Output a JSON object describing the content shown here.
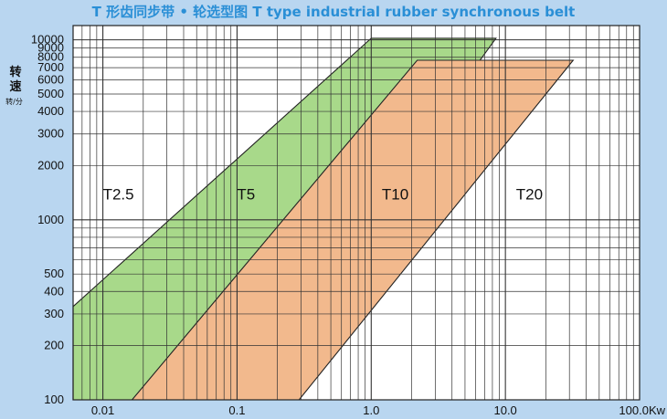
{
  "chart_data": {
    "type": "area",
    "title": "T 形齿同步带 • 轮选型图  T type industrial rubber synchronous belt",
    "ylabel": "转速",
    "ylabel_unit": "转/分",
    "xlabel": "",
    "x_scale": "log",
    "y_scale": "log",
    "xlim": [
      0.006,
      100
    ],
    "ylim": [
      100,
      12000
    ],
    "x_ticks": [
      {
        "value": 0.01,
        "label": "0.01"
      },
      {
        "value": 0.1,
        "label": "0.1"
      },
      {
        "value": 1,
        "label": "1.0"
      },
      {
        "value": 10,
        "label": "10.0"
      },
      {
        "value": 100,
        "label": "100.0Kw"
      }
    ],
    "y_ticks": [
      {
        "value": 100,
        "label": "100"
      },
      {
        "value": 200,
        "label": "200"
      },
      {
        "value": 300,
        "label": "300"
      },
      {
        "value": 400,
        "label": "400"
      },
      {
        "value": 500,
        "label": "500"
      },
      {
        "value": 1000,
        "label": "1000"
      },
      {
        "value": 2000,
        "label": "2000"
      },
      {
        "value": 3000,
        "label": "3000"
      },
      {
        "value": 4000,
        "label": "4000"
      },
      {
        "value": 5000,
        "label": "5000"
      },
      {
        "value": 6000,
        "label": "6000"
      },
      {
        "value": 7000,
        "label": "7000"
      },
      {
        "value": 8000,
        "label": "8000"
      },
      {
        "value": 9000,
        "label": "9000"
      },
      {
        "value": 10000,
        "label": "10000"
      }
    ],
    "grid": true,
    "regions": [
      {
        "name": "T5",
        "color": "#a8d98a",
        "polygon": [
          [
            0.006,
            330
          ],
          [
            1.0,
            10200
          ],
          [
            8.5,
            10200
          ],
          [
            0.093,
            100
          ],
          [
            0.006,
            100
          ]
        ]
      },
      {
        "name": "T10",
        "color": "#f2b98d",
        "polygon": [
          [
            0.0165,
            100
          ],
          [
            2.2,
            7700
          ],
          [
            32,
            7700
          ],
          [
            0.29,
            100
          ]
        ]
      }
    ],
    "labels": [
      {
        "text": "T2.5",
        "x": 0.01,
        "y": 1300
      },
      {
        "text": "T5",
        "x": 0.1,
        "y": 1300
      },
      {
        "text": "T10",
        "x": 1.2,
        "y": 1300
      },
      {
        "text": "T20",
        "x": 12,
        "y": 1300
      }
    ]
  }
}
